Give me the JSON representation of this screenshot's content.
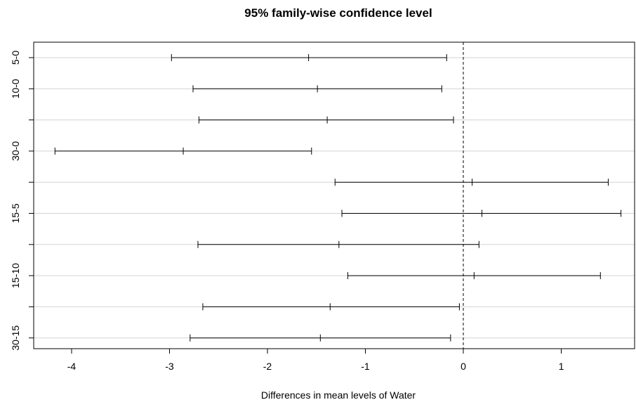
{
  "chart_data": {
    "type": "scatter",
    "subtype": "tukey-hsd-confidence-intervals",
    "title": "95% family-wise confidence level",
    "xlabel": "Differences in mean levels of Water",
    "ylabel": "",
    "xlim": [
      -4.4,
      1.8
    ],
    "x_ticks": [
      -4,
      -3,
      -2,
      -1,
      0,
      1
    ],
    "x_tick_labels": [
      "-4",
      "-3",
      "-2",
      "-1",
      "0",
      "1"
    ],
    "reference_line": 0,
    "grid": "horizontal",
    "rows": [
      {
        "label": "5-0",
        "lwr": -2.98,
        "diff": -1.58,
        "upr": -0.17
      },
      {
        "label": "10-0",
        "lwr": -2.76,
        "diff": -1.49,
        "upr": -0.22
      },
      {
        "label": "",
        "lwr": -2.7,
        "diff": -1.39,
        "upr": -0.1
      },
      {
        "label": "30-0",
        "lwr": -4.17,
        "diff": -2.86,
        "upr": -1.55
      },
      {
        "label": "",
        "lwr": -1.31,
        "diff": 0.09,
        "upr": 1.48
      },
      {
        "label": "15-5",
        "lwr": -1.24,
        "diff": 0.19,
        "upr": 1.61
      },
      {
        "label": "",
        "lwr": -2.71,
        "diff": -1.27,
        "upr": 0.16
      },
      {
        "label": "15-10",
        "lwr": -1.18,
        "diff": 0.11,
        "upr": 1.4
      },
      {
        "label": "",
        "lwr": -2.66,
        "diff": -1.36,
        "upr": -0.04
      },
      {
        "label": "30-15",
        "lwr": -2.79,
        "diff": -1.46,
        "upr": -0.13
      }
    ]
  }
}
